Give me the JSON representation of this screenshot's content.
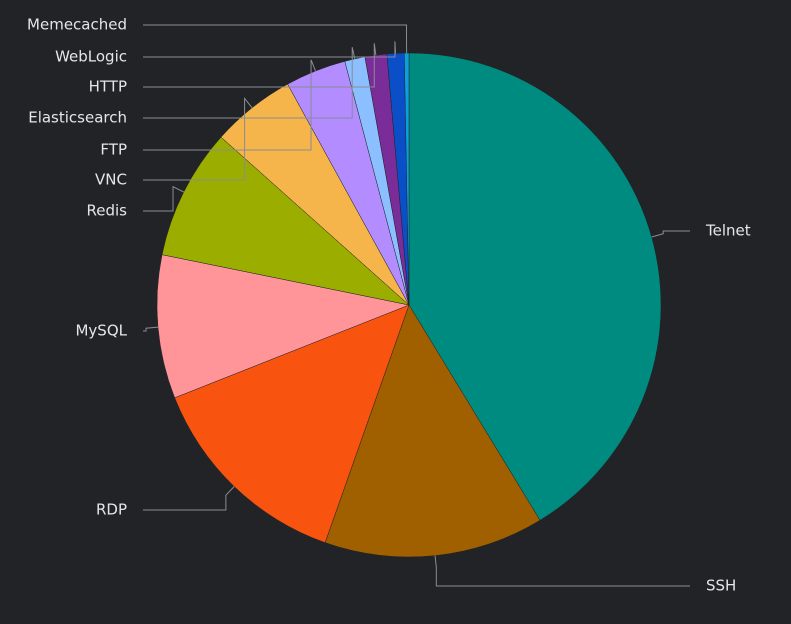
{
  "chart_data": {
    "type": "pie",
    "categories": [
      "Telnet",
      "SSH",
      "RDP",
      "MySQL",
      "Redis",
      "VNC",
      "FTP",
      "Elasticsearch",
      "HTTP",
      "WebLogic",
      "Memecached"
    ],
    "values": [
      41.3,
      14.1,
      13.6,
      9.2,
      8.4,
      5.4,
      3.9,
      1.3,
      1.4,
      1.1,
      0.3
    ],
    "colors": [
      "#008b80",
      "#a06000",
      "#f85410",
      "#ff9499",
      "#9bae00",
      "#f5b54b",
      "#b38cff",
      "#8cbfff",
      "#7a2c99",
      "#0b4fc8",
      "#0aa0e0"
    ]
  }
}
